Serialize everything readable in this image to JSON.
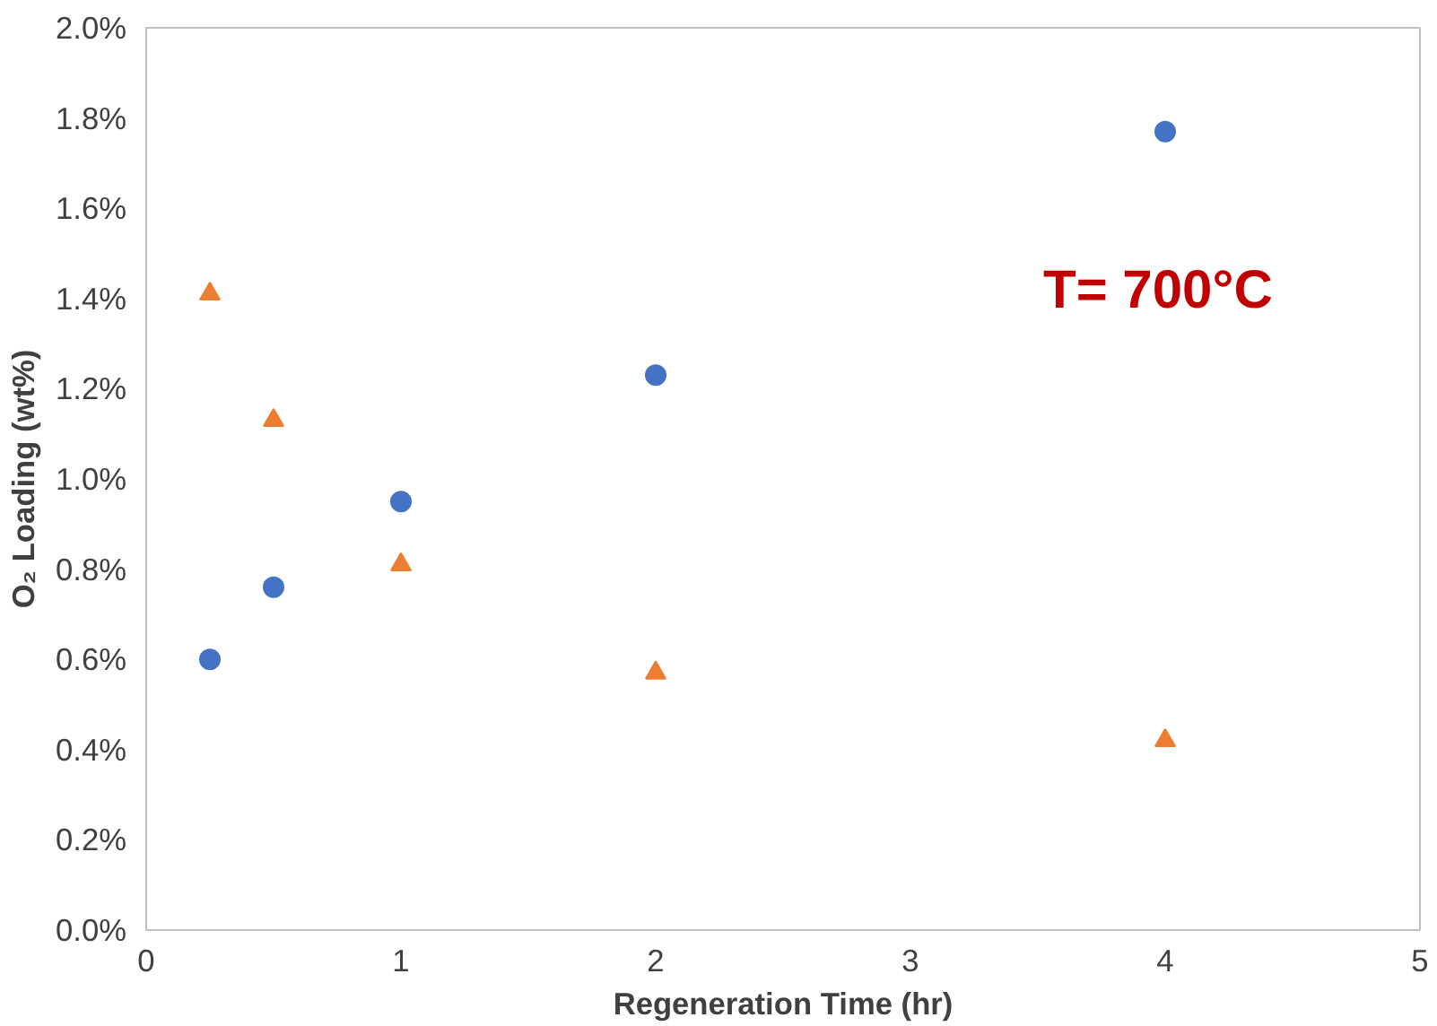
{
  "chart_data": {
    "type": "scatter",
    "xlabel": "Regeneration Time (hr)",
    "ylabel": "O₂ Loading (wt%)",
    "x": [
      0.25,
      0.5,
      1,
      2,
      4
    ],
    "series": [
      {
        "color": "#4472c4",
        "marker": "circle",
        "values": [
          0.6,
          0.76,
          0.95,
          1.23,
          1.77
        ]
      },
      {
        "color": "#ed7d31",
        "marker": "triangle",
        "values": [
          1.41,
          1.13,
          0.81,
          0.57,
          0.42
        ]
      }
    ],
    "xlim": [
      0,
      5
    ],
    "xticks": [
      0,
      1,
      2,
      3,
      4,
      5
    ],
    "ylim": [
      0,
      2.0
    ],
    "yticks": [
      {
        "value": 0,
        "label": "0.0%"
      },
      {
        "value": 0.2,
        "label": "0.2%"
      },
      {
        "value": 0.4,
        "label": "0.4%"
      },
      {
        "value": 0.6,
        "label": "0.6%"
      },
      {
        "value": 0.8,
        "label": "0.8%"
      },
      {
        "value": 1.0,
        "label": "1.0%"
      },
      {
        "value": 1.2,
        "label": "1.2%"
      },
      {
        "value": 1.4,
        "label": "1.4%"
      },
      {
        "value": 1.6,
        "label": "1.6%"
      },
      {
        "value": 1.8,
        "label": "1.8%"
      },
      {
        "value": 2.0,
        "label": "2.0%"
      }
    ],
    "grid": false,
    "annotations": [
      "T= 700°C"
    ]
  }
}
